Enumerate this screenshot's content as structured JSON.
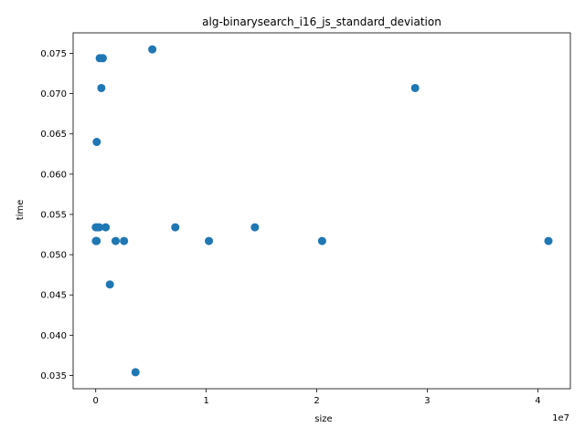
{
  "chart_data": {
    "type": "scatter",
    "title": "alg-binarysearch_i16_js_standard_deviation",
    "xlabel": "size",
    "ylabel": "time",
    "x_offset_label": "1e7",
    "xlim": [
      -2045000,
      42945000
    ],
    "ylim": [
      0.03335,
      0.07755
    ],
    "grid": false,
    "marker_color": "#1f77b4",
    "x_ticks": [
      0,
      10000000,
      20000000,
      30000000,
      40000000
    ],
    "x_tick_labels": [
      "0",
      "1",
      "2",
      "3",
      "4"
    ],
    "y_ticks": [
      0.035,
      0.04,
      0.045,
      0.05,
      0.055,
      0.06,
      0.065,
      0.07,
      0.075
    ],
    "y_tick_labels": [
      "0.035",
      "0.040",
      "0.045",
      "0.050",
      "0.055",
      "0.060",
      "0.065",
      "0.070",
      "0.075"
    ],
    "series": [
      {
        "points": [
          {
            "x": 10000,
            "y": 0.0534
          },
          {
            "x": 20000,
            "y": 0.0517
          },
          {
            "x": 40000,
            "y": 0.0517
          },
          {
            "x": 80000,
            "y": 0.0517
          },
          {
            "x": 90000,
            "y": 0.064
          },
          {
            "x": 160000,
            "y": 0.0534
          },
          {
            "x": 320000,
            "y": 0.0534
          },
          {
            "x": 360000,
            "y": 0.0744
          },
          {
            "x": 510000,
            "y": 0.0707
          },
          {
            "x": 640000,
            "y": 0.0744
          },
          {
            "x": 900000,
            "y": 0.0534
          },
          {
            "x": 1280000,
            "y": 0.0463
          },
          {
            "x": 1800000,
            "y": 0.0517
          },
          {
            "x": 2560000,
            "y": 0.0517
          },
          {
            "x": 3600000,
            "y": 0.0354
          },
          {
            "x": 5120000,
            "y": 0.0755
          },
          {
            "x": 7200000,
            "y": 0.0534
          },
          {
            "x": 10240000,
            "y": 0.0517
          },
          {
            "x": 14400000,
            "y": 0.0534
          },
          {
            "x": 20480000,
            "y": 0.0517
          },
          {
            "x": 28900000,
            "y": 0.0707
          },
          {
            "x": 40960000,
            "y": 0.0517
          }
        ]
      }
    ]
  }
}
